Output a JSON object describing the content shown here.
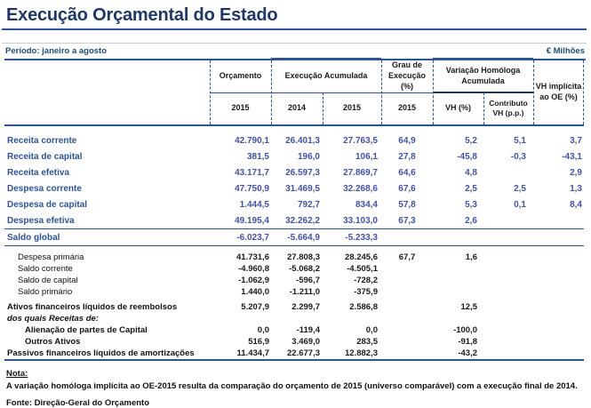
{
  "page": {
    "title": "Execução Orçamental do Estado",
    "period_label": "Período: janeiro a agosto",
    "unit_label": "€ Milhões"
  },
  "colors": {
    "title_navy": "#1F3864",
    "rule_blue": "#2F5496",
    "label_blue": "#2F5496",
    "number_blue": "#4353A0",
    "text_black": "#1a1a1a"
  },
  "table": {
    "header": {
      "orcamento": {
        "label": "Orçamento",
        "year": "2015"
      },
      "execucao": {
        "label": "Execução Acumulada",
        "y2014": "2014",
        "y2015": "2015"
      },
      "grau": {
        "label": "Grau de Execução (%)",
        "year": "2015"
      },
      "variacao": {
        "label": "Variação Homóloga Acumulada",
        "vh": "VH (%)",
        "contributo": "Contributo VH (p.p.)"
      },
      "vh_implicita": {
        "label": "VH implícita ao OE (%)"
      }
    },
    "sections": [
      {
        "id": "main",
        "rows": [
          {
            "label": "Receita corrente",
            "style": "blue",
            "indent": 0,
            "values": [
              "42.790,1",
              "26.401,3",
              "27.763,5",
              "64,9",
              "5,2",
              "5,1",
              "3,7"
            ]
          },
          {
            "label": "Receita de capital",
            "style": "blue",
            "indent": 0,
            "values": [
              "381,5",
              "196,0",
              "106,1",
              "27,8",
              "-45,8",
              "-0,3",
              "-43,1"
            ]
          },
          {
            "label": "Receita efetiva",
            "style": "blue",
            "indent": 0,
            "values": [
              "43.171,7",
              "26.597,3",
              "27.869,7",
              "64,6",
              "4,8",
              "",
              "2,9"
            ]
          },
          {
            "label": "Despesa corrente",
            "style": "blue",
            "indent": 0,
            "values": [
              "47.750,9",
              "31.469,5",
              "32.268,6",
              "67,6",
              "2,5",
              "2,5",
              "1,3"
            ]
          },
          {
            "label": "Despesa de capital",
            "style": "blue",
            "indent": 0,
            "values": [
              "1.444,5",
              "792,7",
              "834,4",
              "57,8",
              "5,3",
              "0,1",
              "8,4"
            ]
          },
          {
            "label": "Despesa efetiva",
            "style": "blue",
            "indent": 0,
            "values": [
              "49.195,4",
              "32.262,2",
              "33.103,0",
              "67,3",
              "2,6",
              "",
              ""
            ]
          }
        ]
      },
      {
        "id": "saldo",
        "rows": [
          {
            "label": "Saldo global",
            "style": "blue",
            "indent": 0,
            "values": [
              "-6.023,7",
              "-5.664,9",
              "-5.233,3",
              "",
              "",
              "",
              ""
            ]
          }
        ]
      },
      {
        "id": "detail",
        "rows": [
          {
            "label": "Despesa primária",
            "style": "plain",
            "indent": 1,
            "values": [
              "41.731,6",
              "27.808,3",
              "28.245,6",
              "67,7",
              "1,6",
              "",
              ""
            ]
          },
          {
            "label": "Saldo corrente",
            "style": "plain",
            "indent": 1,
            "values": [
              "-4.960,8",
              "-5.068,2",
              "-4.505,1",
              "",
              "",
              "",
              ""
            ]
          },
          {
            "label": "Saldo de capital",
            "style": "plain",
            "indent": 1,
            "values": [
              "-1.062,9",
              "-596,7",
              "-728,2",
              "",
              "",
              "",
              ""
            ]
          },
          {
            "label": "Saldo primário",
            "style": "plain",
            "indent": 1,
            "values": [
              "1.440,0",
              "-1.211,0",
              "-375,9",
              "",
              "",
              "",
              ""
            ]
          }
        ]
      },
      {
        "id": "financial",
        "rows": [
          {
            "label": "Ativos financeiros líquidos de reembolsos",
            "style": "bold",
            "indent": 0,
            "values": [
              "5.207,9",
              "2.299,7",
              "2.586,8",
              "",
              "12,5",
              "",
              ""
            ]
          },
          {
            "label": "dos quais Receitas de:",
            "style": "italic",
            "indent": 0,
            "values": [
              "",
              "",
              "",
              "",
              "",
              "",
              ""
            ]
          },
          {
            "label": "Alienação de partes de Capital",
            "style": "bold",
            "indent": 2,
            "values": [
              "0,0",
              "-119,4",
              "0,0",
              "",
              "-100,0",
              "",
              ""
            ]
          },
          {
            "label": "Outros Ativos",
            "style": "bold",
            "indent": 2,
            "values": [
              "516,9",
              "3.469,0",
              "283,5",
              "",
              "-91,8",
              "",
              ""
            ]
          },
          {
            "label": "Passivos financeiros líquidos de amortizações",
            "style": "bold",
            "indent": 0,
            "values": [
              "11.434,7",
              "22.677,3",
              "12.882,3",
              "",
              "-43,2",
              "",
              ""
            ]
          }
        ]
      }
    ]
  },
  "note": {
    "label": "Nota:",
    "text": "A variação homóloga implícita ao OE-2015 resulta da comparação do orçamento de 2015 (universo comparável) com a execução final de 2014."
  },
  "source": "Fonte: Direção-Geral do Orçamento"
}
